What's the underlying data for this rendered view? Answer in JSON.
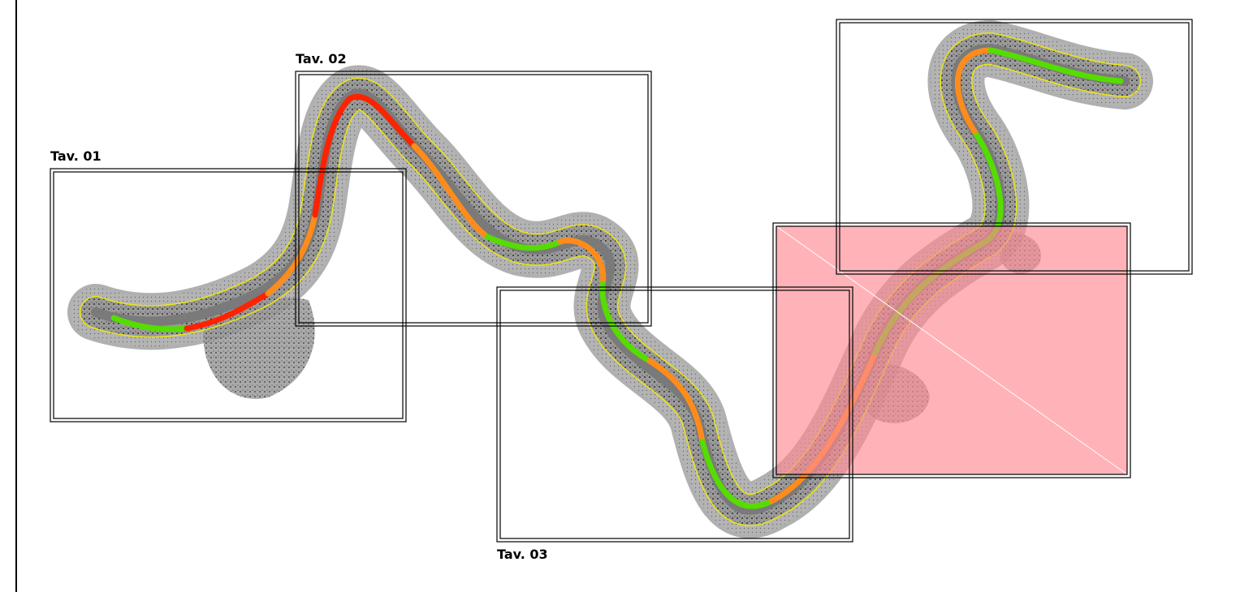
{
  "sheets": [
    {
      "id": "tav01",
      "label": "Tav. 01"
    },
    {
      "id": "tav02",
      "label": "Tav. 02"
    },
    {
      "id": "tav03",
      "label": "Tav. 03"
    },
    {
      "id": "tav04",
      "label": ""
    },
    {
      "id": "tav05",
      "label": ""
    }
  ],
  "colors": {
    "buffer": "#a9a9a9",
    "contour": "#ffff00",
    "segment_high": "#ff2200",
    "segment_mid": "#ff8c1a",
    "segment_low": "#55dd00",
    "axis": "#777777",
    "highlight_fill": "#ff8a92",
    "frame": "#000000"
  }
}
